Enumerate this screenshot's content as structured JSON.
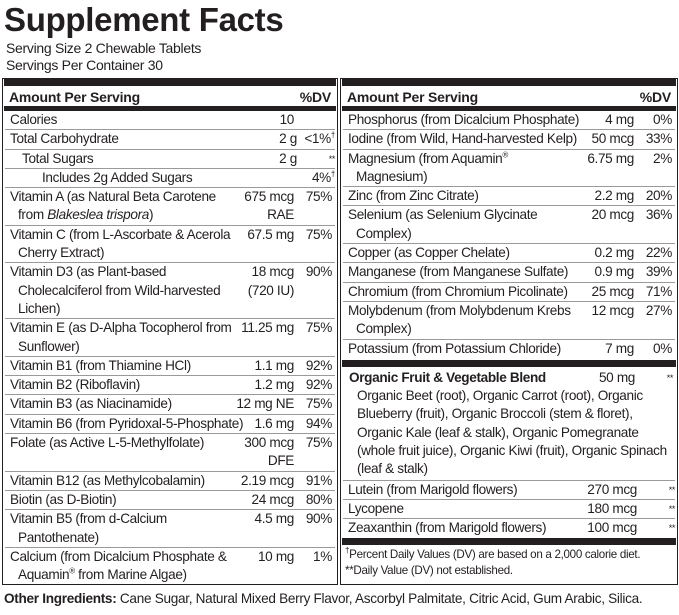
{
  "title": "Supplement Facts",
  "serving_size": "Serving Size 2 Chewable Tablets",
  "servings_per_container": "Servings Per Container 30",
  "header": {
    "amount": "Amount Per Serving",
    "dv": "%DV"
  },
  "left_rows": [
    {
      "parts": [
        {
          "t": "Calories"
        }
      ],
      "amount": "10",
      "dv": ""
    },
    {
      "parts": [
        {
          "t": "Total Carbohydrate"
        }
      ],
      "amount": "2 g",
      "dv": "<1%",
      "dv_mark": "†"
    },
    {
      "parts": [
        {
          "t": "Total Sugars"
        }
      ],
      "indent": 1,
      "amount": "2 g",
      "dv": "**"
    },
    {
      "parts": [
        {
          "t": "Includes 2g Added Sugars"
        }
      ],
      "indent": 2,
      "amount": "",
      "dv": "4%",
      "dv_mark": "†"
    },
    {
      "parts": [
        {
          "t": "Vitamin A (as Natural Beta Carotene from "
        },
        {
          "t": "Blakeslea trispora",
          "s": "i"
        },
        {
          "t": ")"
        }
      ],
      "amount": "675 mcg RAE",
      "dv": "75%"
    },
    {
      "parts": [
        {
          "t": "Vitamin C (from L-Ascorbate & Acerola Cherry Extract)"
        }
      ],
      "amount": "67.5 mg",
      "dv": "75%"
    },
    {
      "parts": [
        {
          "t": "Vitamin D3 (as Plant-based Cholecalciferol from Wild-harvested Lichen)"
        }
      ],
      "amount": "18 mcg (720 IU)",
      "dv": "90%"
    },
    {
      "parts": [
        {
          "t": "Vitamin E (as D-Alpha Tocopherol from Sunflower)"
        }
      ],
      "amount": "11.25 mg",
      "dv": "75%"
    },
    {
      "parts": [
        {
          "t": "Vitamin B1 (from Thiamine HCl)"
        }
      ],
      "amount": "1.1 mg",
      "dv": "92%"
    },
    {
      "parts": [
        {
          "t": "Vitamin B2 (Riboflavin)"
        }
      ],
      "amount": "1.2 mg",
      "dv": "92%"
    },
    {
      "parts": [
        {
          "t": "Vitamin B3 (as Niacinamide)"
        }
      ],
      "amount": "12 mg NE",
      "dv": "75%"
    },
    {
      "parts": [
        {
          "t": "Vitamin B6 (from Pyridoxal-5-Phosphate)"
        }
      ],
      "amount": "1.6 mg",
      "dv": "94%"
    },
    {
      "parts": [
        {
          "t": "Folate (as Active L-5-Methylfolate)"
        }
      ],
      "amount": "300 mcg DFE",
      "dv": "75%"
    },
    {
      "parts": [
        {
          "t": "Vitamin B12 (as Methylcobalamin)"
        }
      ],
      "amount": "2.19 mcg",
      "dv": "91%"
    },
    {
      "parts": [
        {
          "t": "Biotin (as D-Biotin)"
        }
      ],
      "amount": "24 mcg",
      "dv": "80%"
    },
    {
      "parts": [
        {
          "t": "Vitamin B5 (from d-Calcium Pantothenate)"
        }
      ],
      "amount": "4.5 mg",
      "dv": "90%"
    },
    {
      "parts": [
        {
          "t": "Calcium (from Dicalcium Phosphate & Aquamin"
        },
        {
          "t": "®",
          "s": "sup"
        },
        {
          "t": " from Marine Algae)"
        }
      ],
      "amount": "10 mg",
      "dv": "1%"
    }
  ],
  "right_rows": [
    {
      "parts": [
        {
          "t": "Phosphorus (from Dicalcium Phosphate)"
        }
      ],
      "amount": "4 mg",
      "dv": "0%"
    },
    {
      "parts": [
        {
          "t": "Iodine (from Wild, Hand-harvested Kelp)"
        }
      ],
      "amount": "50 mcg",
      "dv": "33%"
    },
    {
      "parts": [
        {
          "t": "Magnesium (from Aquamin"
        },
        {
          "t": "®",
          "s": "sup"
        },
        {
          "t": " Magnesium)"
        }
      ],
      "amount": "6.75 mg",
      "dv": "2%"
    },
    {
      "parts": [
        {
          "t": "Zinc (from Zinc Citrate)"
        }
      ],
      "amount": "2.2 mg",
      "dv": "20%"
    },
    {
      "parts": [
        {
          "t": "Selenium (as Selenium Glycinate Complex)"
        }
      ],
      "amount": "20 mcg",
      "dv": "36%"
    },
    {
      "parts": [
        {
          "t": "Copper (as Copper Chelate)"
        }
      ],
      "amount": "0.2 mg",
      "dv": "22%"
    },
    {
      "parts": [
        {
          "t": "Manganese (from Manganese Sulfate)"
        }
      ],
      "amount": "0.9 mg",
      "dv": "39%"
    },
    {
      "parts": [
        {
          "t": "Chromium (from Chromium Picolinate)"
        }
      ],
      "amount": "25 mcg",
      "dv": "71%"
    },
    {
      "parts": [
        {
          "t": "Molybdenum (from Molybdenum Krebs Complex)"
        }
      ],
      "amount": "12 mcg",
      "dv": "27%"
    },
    {
      "parts": [
        {
          "t": "Potassium (from Potassium Chloride)"
        }
      ],
      "amount": "7 mg",
      "dv": "0%"
    }
  ],
  "blend": {
    "name": "Organic Fruit & Vegetable Blend",
    "amount": "50 mg",
    "dv": "**",
    "ingredients": "Organic Beet (root), Organic Carrot (root), Organic Blueberry (fruit), Organic Broccoli (stem & floret), Organic Kale (leaf & stalk), Organic Pomegranate (whole fruit juice), Organic Kiwi (fruit), Organic Spinach (leaf & stalk)"
  },
  "right_rows_2": [
    {
      "parts": [
        {
          "t": "Lutein (from Marigold flowers)"
        }
      ],
      "amount": "270 mcg",
      "dv": "**"
    },
    {
      "parts": [
        {
          "t": "Lycopene"
        }
      ],
      "amount": "180 mcg",
      "dv": "**"
    },
    {
      "parts": [
        {
          "t": "Zeaxanthin (from Marigold flowers)"
        }
      ],
      "amount": "100 mcg",
      "dv": "**"
    }
  ],
  "footnotes": {
    "dagger_mark": "†",
    "percent_note": "Percent Daily Values (DV) are based on a 2,000 calorie diet.",
    "not_established": "**Daily Value (DV) not established."
  },
  "other_ingredients": {
    "label": "Other Ingredients:",
    "text": " Cane Sugar, Natural Mixed Berry Flavor, Ascorbyl Palmitate, Citric Acid, Gum Arabic, Silica."
  }
}
